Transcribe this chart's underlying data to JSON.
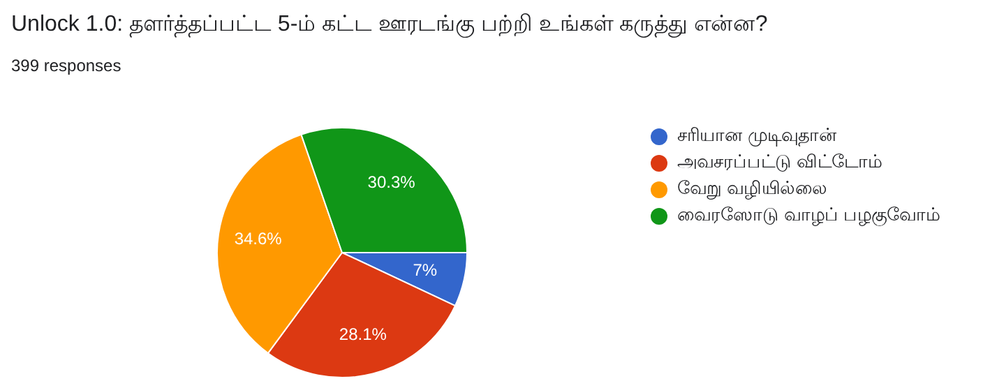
{
  "chart_data": {
    "type": "pie",
    "title": "Unlock 1.0: தளர்த்தப்பட்ட 5-ம் கட்ட ஊரடங்கு பற்றி உங்கள் கருத்து என்ன?",
    "subtitle": "399 responses",
    "categories": [
      "சரியான முடிவுதான்",
      "அவசரப்பட்டு விட்டோம்",
      "வேறு வழியில்லை",
      "வைரஸோடு வாழப் பழகுவோம்"
    ],
    "values": [
      7,
      28.1,
      34.6,
      30.3
    ],
    "value_labels": [
      "7%",
      "28.1%",
      "34.6%",
      "30.3%"
    ],
    "colors": [
      "#3366cc",
      "#dc3912",
      "#ff9900",
      "#109618"
    ],
    "legend": "right"
  }
}
